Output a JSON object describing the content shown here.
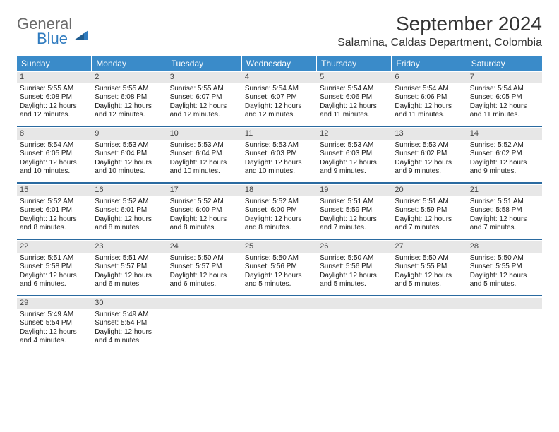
{
  "brand": {
    "line1": "General",
    "line2": "Blue"
  },
  "title": "September 2024",
  "location": "Salamina, Caldas Department, Colombia",
  "colors": {
    "header_bg": "#3a8bc9",
    "header_text": "#ffffff",
    "daynum_bg": "#e7e7e7",
    "week_divider": "#2a6aa0",
    "logo_gray": "#6b6b6b",
    "logo_blue": "#2f7bbf"
  },
  "dow": [
    "Sunday",
    "Monday",
    "Tuesday",
    "Wednesday",
    "Thursday",
    "Friday",
    "Saturday"
  ],
  "weeks": [
    [
      {
        "n": "1",
        "sr": "Sunrise: 5:55 AM",
        "ss": "Sunset: 6:08 PM",
        "dl": "Daylight: 12 hours and 12 minutes."
      },
      {
        "n": "2",
        "sr": "Sunrise: 5:55 AM",
        "ss": "Sunset: 6:08 PM",
        "dl": "Daylight: 12 hours and 12 minutes."
      },
      {
        "n": "3",
        "sr": "Sunrise: 5:55 AM",
        "ss": "Sunset: 6:07 PM",
        "dl": "Daylight: 12 hours and 12 minutes."
      },
      {
        "n": "4",
        "sr": "Sunrise: 5:54 AM",
        "ss": "Sunset: 6:07 PM",
        "dl": "Daylight: 12 hours and 12 minutes."
      },
      {
        "n": "5",
        "sr": "Sunrise: 5:54 AM",
        "ss": "Sunset: 6:06 PM",
        "dl": "Daylight: 12 hours and 11 minutes."
      },
      {
        "n": "6",
        "sr": "Sunrise: 5:54 AM",
        "ss": "Sunset: 6:06 PM",
        "dl": "Daylight: 12 hours and 11 minutes."
      },
      {
        "n": "7",
        "sr": "Sunrise: 5:54 AM",
        "ss": "Sunset: 6:05 PM",
        "dl": "Daylight: 12 hours and 11 minutes."
      }
    ],
    [
      {
        "n": "8",
        "sr": "Sunrise: 5:54 AM",
        "ss": "Sunset: 6:05 PM",
        "dl": "Daylight: 12 hours and 10 minutes."
      },
      {
        "n": "9",
        "sr": "Sunrise: 5:53 AM",
        "ss": "Sunset: 6:04 PM",
        "dl": "Daylight: 12 hours and 10 minutes."
      },
      {
        "n": "10",
        "sr": "Sunrise: 5:53 AM",
        "ss": "Sunset: 6:04 PM",
        "dl": "Daylight: 12 hours and 10 minutes."
      },
      {
        "n": "11",
        "sr": "Sunrise: 5:53 AM",
        "ss": "Sunset: 6:03 PM",
        "dl": "Daylight: 12 hours and 10 minutes."
      },
      {
        "n": "12",
        "sr": "Sunrise: 5:53 AM",
        "ss": "Sunset: 6:03 PM",
        "dl": "Daylight: 12 hours and 9 minutes."
      },
      {
        "n": "13",
        "sr": "Sunrise: 5:53 AM",
        "ss": "Sunset: 6:02 PM",
        "dl": "Daylight: 12 hours and 9 minutes."
      },
      {
        "n": "14",
        "sr": "Sunrise: 5:52 AM",
        "ss": "Sunset: 6:02 PM",
        "dl": "Daylight: 12 hours and 9 minutes."
      }
    ],
    [
      {
        "n": "15",
        "sr": "Sunrise: 5:52 AM",
        "ss": "Sunset: 6:01 PM",
        "dl": "Daylight: 12 hours and 8 minutes."
      },
      {
        "n": "16",
        "sr": "Sunrise: 5:52 AM",
        "ss": "Sunset: 6:01 PM",
        "dl": "Daylight: 12 hours and 8 minutes."
      },
      {
        "n": "17",
        "sr": "Sunrise: 5:52 AM",
        "ss": "Sunset: 6:00 PM",
        "dl": "Daylight: 12 hours and 8 minutes."
      },
      {
        "n": "18",
        "sr": "Sunrise: 5:52 AM",
        "ss": "Sunset: 6:00 PM",
        "dl": "Daylight: 12 hours and 8 minutes."
      },
      {
        "n": "19",
        "sr": "Sunrise: 5:51 AM",
        "ss": "Sunset: 5:59 PM",
        "dl": "Daylight: 12 hours and 7 minutes."
      },
      {
        "n": "20",
        "sr": "Sunrise: 5:51 AM",
        "ss": "Sunset: 5:59 PM",
        "dl": "Daylight: 12 hours and 7 minutes."
      },
      {
        "n": "21",
        "sr": "Sunrise: 5:51 AM",
        "ss": "Sunset: 5:58 PM",
        "dl": "Daylight: 12 hours and 7 minutes."
      }
    ],
    [
      {
        "n": "22",
        "sr": "Sunrise: 5:51 AM",
        "ss": "Sunset: 5:58 PM",
        "dl": "Daylight: 12 hours and 6 minutes."
      },
      {
        "n": "23",
        "sr": "Sunrise: 5:51 AM",
        "ss": "Sunset: 5:57 PM",
        "dl": "Daylight: 12 hours and 6 minutes."
      },
      {
        "n": "24",
        "sr": "Sunrise: 5:50 AM",
        "ss": "Sunset: 5:57 PM",
        "dl": "Daylight: 12 hours and 6 minutes."
      },
      {
        "n": "25",
        "sr": "Sunrise: 5:50 AM",
        "ss": "Sunset: 5:56 PM",
        "dl": "Daylight: 12 hours and 5 minutes."
      },
      {
        "n": "26",
        "sr": "Sunrise: 5:50 AM",
        "ss": "Sunset: 5:56 PM",
        "dl": "Daylight: 12 hours and 5 minutes."
      },
      {
        "n": "27",
        "sr": "Sunrise: 5:50 AM",
        "ss": "Sunset: 5:55 PM",
        "dl": "Daylight: 12 hours and 5 minutes."
      },
      {
        "n": "28",
        "sr": "Sunrise: 5:50 AM",
        "ss": "Sunset: 5:55 PM",
        "dl": "Daylight: 12 hours and 5 minutes."
      }
    ],
    [
      {
        "n": "29",
        "sr": "Sunrise: 5:49 AM",
        "ss": "Sunset: 5:54 PM",
        "dl": "Daylight: 12 hours and 4 minutes."
      },
      {
        "n": "30",
        "sr": "Sunrise: 5:49 AM",
        "ss": "Sunset: 5:54 PM",
        "dl": "Daylight: 12 hours and 4 minutes."
      },
      {
        "n": "",
        "sr": "",
        "ss": "",
        "dl": ""
      },
      {
        "n": "",
        "sr": "",
        "ss": "",
        "dl": ""
      },
      {
        "n": "",
        "sr": "",
        "ss": "",
        "dl": ""
      },
      {
        "n": "",
        "sr": "",
        "ss": "",
        "dl": ""
      },
      {
        "n": "",
        "sr": "",
        "ss": "",
        "dl": ""
      }
    ]
  ]
}
